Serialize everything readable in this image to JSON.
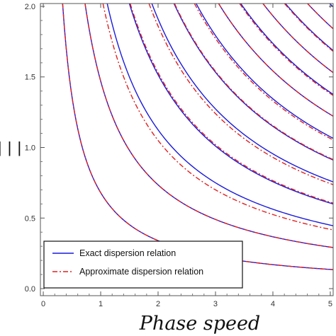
{
  "chart_data": {
    "type": "line",
    "title": "",
    "xlabel": "Phase speed",
    "ylabel": "",
    "ylabel_glyph": "| | |",
    "xlim": [
      -0.05,
      5.05
    ],
    "ylim": [
      -0.05,
      2.02
    ],
    "xticks": [
      "0",
      "1",
      "2",
      "3",
      "4",
      "5"
    ],
    "yticks": [
      "0.0",
      "0.5",
      "1.0",
      "1.5",
      "2.0"
    ],
    "grid": false,
    "legend_position": "bottom-left",
    "colors": {
      "exact": "#1a1adb",
      "approximate": "#e02020"
    },
    "legend": [
      {
        "label": "Exact dispersion relation",
        "style": "solid"
      },
      {
        "label": "Approximate dispersion relation",
        "style": "dashdot"
      }
    ],
    "series": [
      {
        "name": "Exact dispersion relation",
        "constants": [
          0.68,
          1.47,
          2.25,
          3.03,
          3.82,
          4.6,
          5.38,
          6.17,
          6.95,
          7.73,
          8.52,
          9.3,
          10.08,
          10.86
        ]
      },
      {
        "name": "Approximate dispersion relation",
        "constants": [
          0.68,
          1.47,
          2.25,
          3.03,
          3.82,
          4.6,
          5.38,
          6.17,
          6.95,
          7.73,
          8.52,
          9.3,
          10.08,
          10.86
        ],
        "constant_offsets": [
          0,
          0,
          -0.15,
          0.03,
          -0.1,
          0.02,
          -0.06,
          0,
          -0.04,
          0,
          -0.03,
          0,
          0.12,
          0
        ]
      }
    ]
  }
}
